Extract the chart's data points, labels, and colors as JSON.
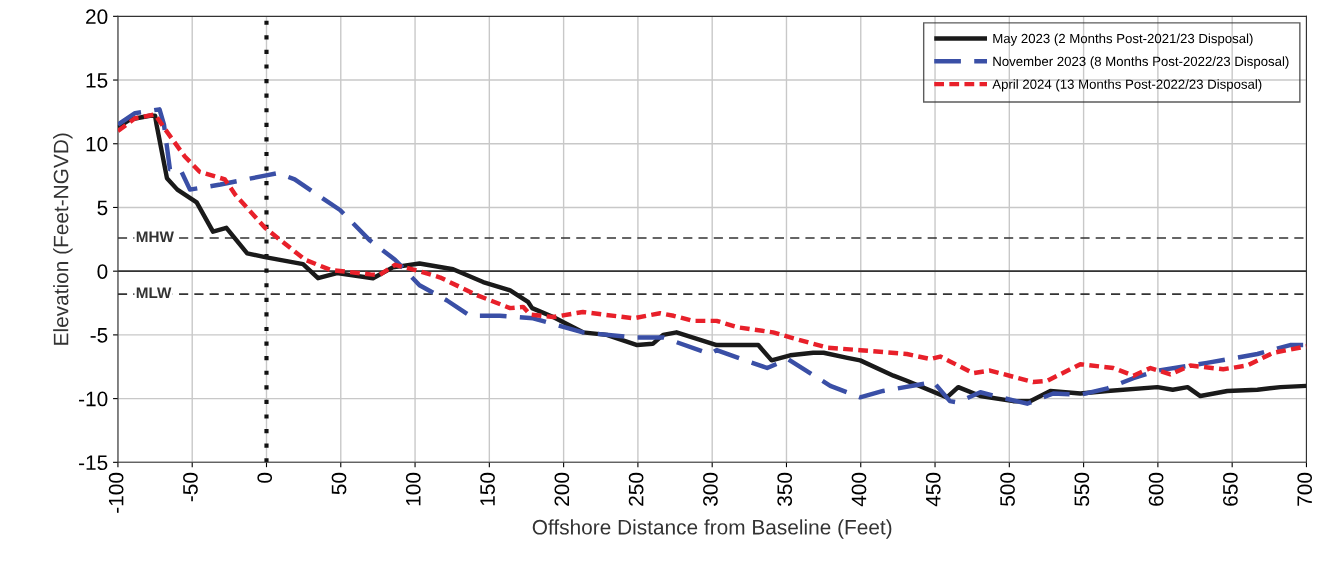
{
  "chart_data": {
    "type": "line",
    "xlabel": "Offshore Distance from Baseline (Feet)",
    "ylabel": "Elevation (Feet-NGVD)",
    "xlim": [
      -100,
      700
    ],
    "xticks": [
      -100,
      -50,
      0,
      50,
      100,
      150,
      200,
      250,
      300,
      350,
      400,
      450,
      500,
      550,
      600,
      650,
      700
    ],
    "ylim": [
      -15,
      20
    ],
    "yticks": [
      -15,
      -10,
      -5,
      0,
      5,
      10,
      15,
      20
    ],
    "grid": true,
    "legend": "top right",
    "ref_lines": [
      {
        "axis": "y",
        "value": 0,
        "label": null,
        "color": "#333333",
        "line_style": "solid"
      },
      {
        "axis": "y",
        "value": 2.6,
        "label": "MHW",
        "color": "#333333",
        "line_style": "dashed"
      },
      {
        "axis": "y",
        "value": -1.8,
        "label": "MLW",
        "color": "#333333",
        "line_style": "dashed"
      },
      {
        "axis": "x",
        "value": 0,
        "label": null,
        "color": "#111111",
        "line_style": "dotted"
      }
    ],
    "series": [
      {
        "name": "May 2023 (2 Months Post-2021/23 Disposal)",
        "color": "#1a1a1a",
        "line_style": "solid",
        "x": [
          -100,
          -92,
          -78.5,
          -75,
          -74,
          -67,
          -60,
          -47,
          -36,
          -27,
          -13,
          -1,
          24.6,
          34.7,
          47.5,
          71.7,
          85,
          103,
          125.6,
          145.8,
          164,
          176,
          178.8,
          193,
          213,
          229,
          249.5,
          260,
          267,
          276,
          303,
          331,
          340,
          352.5,
          368,
          375,
          391,
          399.6,
          422,
          431,
          458,
          465.6,
          480.5,
          502.7,
          514,
          527.6,
          547.8,
          566,
          599.7,
          610,
          620,
          628.6,
          646.8,
          667,
          682.5,
          700
        ],
        "values": [
          11.3,
          11.9,
          12.2,
          12.2,
          11.5,
          7.3,
          6.4,
          5.4,
          3.1,
          3.4,
          1.4,
          1.1,
          0.55,
          -0.55,
          -0.15,
          -0.55,
          0.3,
          0.6,
          0.15,
          -0.85,
          -1.5,
          -2.4,
          -2.9,
          -3.6,
          -4.8,
          -5.0,
          -5.8,
          -5.7,
          -5.0,
          -4.8,
          -5.8,
          -5.8,
          -7.0,
          -6.6,
          -6.4,
          -6.4,
          -6.8,
          -7.0,
          -8.2,
          -8.6,
          -9.9,
          -9.1,
          -9.8,
          -10.2,
          -10.2,
          -9.4,
          -9.6,
          -9.4,
          -9.1,
          -9.3,
          -9.1,
          -9.8,
          -9.4,
          -9.3,
          -9.1,
          -9.0
        ]
      },
      {
        "name": "November 2023 (8 Months Post-2022/23 Disposal)",
        "color": "#3a4fa6",
        "line_style": "dashed",
        "x": [
          -100,
          -88.5,
          -72,
          -69,
          -65,
          -58,
          -51.5,
          -31,
          -1,
          7.7,
          19,
          49.5,
          69.7,
          86.5,
          103,
          121.5,
          137,
          157,
          179.5,
          213,
          247,
          267,
          298.6,
          303,
          337,
          351,
          379.5,
          399.6,
          415,
          449,
          460,
          465,
          480.5,
          494,
          512,
          529.6,
          547.8,
          566,
          583.5,
          599.7,
          633,
          667,
          689,
          700
        ],
        "values": [
          11.5,
          12.4,
          12.7,
          11.5,
          8.0,
          8.0,
          6.4,
          6.8,
          7.5,
          7.7,
          7.2,
          4.8,
          2.4,
          0.9,
          -1.1,
          -2.3,
          -3.5,
          -3.5,
          -3.7,
          -4.8,
          -5.2,
          -5.2,
          -6.5,
          -6.2,
          -7.6,
          -6.9,
          -9.0,
          -9.9,
          -9.4,
          -8.7,
          -10.2,
          -10.3,
          -9.5,
          -9.9,
          -10.4,
          -9.6,
          -9.7,
          -9.2,
          -8.4,
          -7.8,
          -7.2,
          -6.5,
          -5.8,
          -5.8
        ]
      },
      {
        "name": "April 2024 (13 Months Post-2022/23 Disposal)",
        "color": "#e8202a",
        "line_style": "dotted",
        "x": [
          -100,
          -88.5,
          -75,
          -68,
          -55,
          -45,
          -28,
          -21,
          -1,
          26,
          43,
          70,
          76,
          86.5,
          103,
          117,
          142,
          164,
          172.7,
          177.4,
          193,
          213,
          247,
          265,
          274,
          287,
          303,
          317,
          341,
          352.5,
          377.4,
          399.6,
          431,
          447,
          453.5,
          475.7,
          487,
          516,
          525.6,
          547.8,
          570,
          583.5,
          595,
          608.4,
          621.9,
          644,
          660,
          677.8,
          700
        ],
        "values": [
          11.0,
          12.0,
          12.3,
          11.1,
          9.0,
          7.8,
          7.2,
          6.0,
          3.4,
          0.9,
          0.1,
          -0.25,
          -0.3,
          0.5,
          0.0,
          -0.5,
          -1.9,
          -2.9,
          -2.8,
          -3.4,
          -3.6,
          -3.2,
          -3.7,
          -3.3,
          -3.5,
          -3.9,
          -3.9,
          -4.4,
          -4.8,
          -5.2,
          -6.0,
          -6.2,
          -6.5,
          -6.9,
          -6.7,
          -8.0,
          -7.8,
          -8.7,
          -8.6,
          -7.3,
          -7.6,
          -8.2,
          -7.6,
          -8.1,
          -7.4,
          -7.7,
          -7.4,
          -6.4,
          -5.9
        ]
      }
    ]
  }
}
